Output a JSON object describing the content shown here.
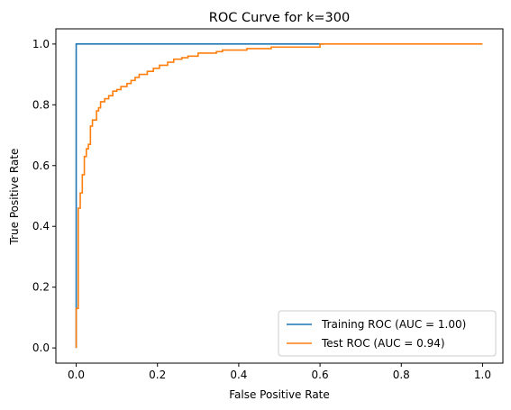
{
  "chart_data": {
    "type": "line",
    "title": "ROC Curve for k=300",
    "xlabel": "False Positive Rate",
    "ylabel": "True Positive Rate",
    "xlim": [
      -0.05,
      1.05
    ],
    "ylim": [
      -0.05,
      1.05
    ],
    "xticks": [
      0.0,
      0.2,
      0.4,
      0.6,
      0.8,
      1.0
    ],
    "yticks": [
      0.0,
      0.2,
      0.4,
      0.6,
      0.8,
      1.0
    ],
    "xtick_labels": [
      "0.0",
      "0.2",
      "0.4",
      "0.6",
      "0.8",
      "1.0"
    ],
    "ytick_labels": [
      "0.0",
      "0.2",
      "0.4",
      "0.6",
      "0.8",
      "1.0"
    ],
    "grid": false,
    "legend_position": "lower-right",
    "series": [
      {
        "name": "Training ROC (AUC = 1.00)",
        "color": "#1f77b4",
        "x": [
          0.0,
          0.0,
          0.0,
          0.61
        ],
        "y": [
          0.0,
          0.13,
          1.0,
          1.0
        ]
      },
      {
        "name": "Test ROC (AUC = 0.94)",
        "color": "#ff7f0e",
        "x": [
          0.0,
          0.0,
          0.005,
          0.005,
          0.01,
          0.01,
          0.015,
          0.015,
          0.02,
          0.02,
          0.025,
          0.025,
          0.03,
          0.03,
          0.035,
          0.035,
          0.04,
          0.04,
          0.05,
          0.05,
          0.055,
          0.055,
          0.06,
          0.06,
          0.07,
          0.07,
          0.08,
          0.08,
          0.09,
          0.09,
          0.1,
          0.1,
          0.11,
          0.11,
          0.125,
          0.125,
          0.135,
          0.135,
          0.145,
          0.145,
          0.155,
          0.155,
          0.175,
          0.175,
          0.19,
          0.19,
          0.205,
          0.205,
          0.225,
          0.225,
          0.24,
          0.24,
          0.26,
          0.26,
          0.275,
          0.275,
          0.3,
          0.3,
          0.345,
          0.345,
          0.36,
          0.36,
          0.42,
          0.42,
          0.48,
          0.48,
          0.6,
          0.6,
          1.0
        ],
        "y": [
          0.0,
          0.13,
          0.13,
          0.46,
          0.46,
          0.51,
          0.51,
          0.57,
          0.57,
          0.63,
          0.63,
          0.655,
          0.655,
          0.67,
          0.67,
          0.73,
          0.73,
          0.75,
          0.75,
          0.78,
          0.78,
          0.79,
          0.79,
          0.81,
          0.81,
          0.82,
          0.82,
          0.83,
          0.83,
          0.845,
          0.845,
          0.85,
          0.85,
          0.86,
          0.86,
          0.87,
          0.87,
          0.88,
          0.88,
          0.89,
          0.89,
          0.9,
          0.9,
          0.91,
          0.91,
          0.92,
          0.92,
          0.93,
          0.93,
          0.94,
          0.94,
          0.95,
          0.95,
          0.955,
          0.955,
          0.96,
          0.96,
          0.97,
          0.97,
          0.975,
          0.975,
          0.98,
          0.98,
          0.985,
          0.985,
          0.99,
          0.99,
          1.0,
          1.0
        ]
      }
    ]
  }
}
